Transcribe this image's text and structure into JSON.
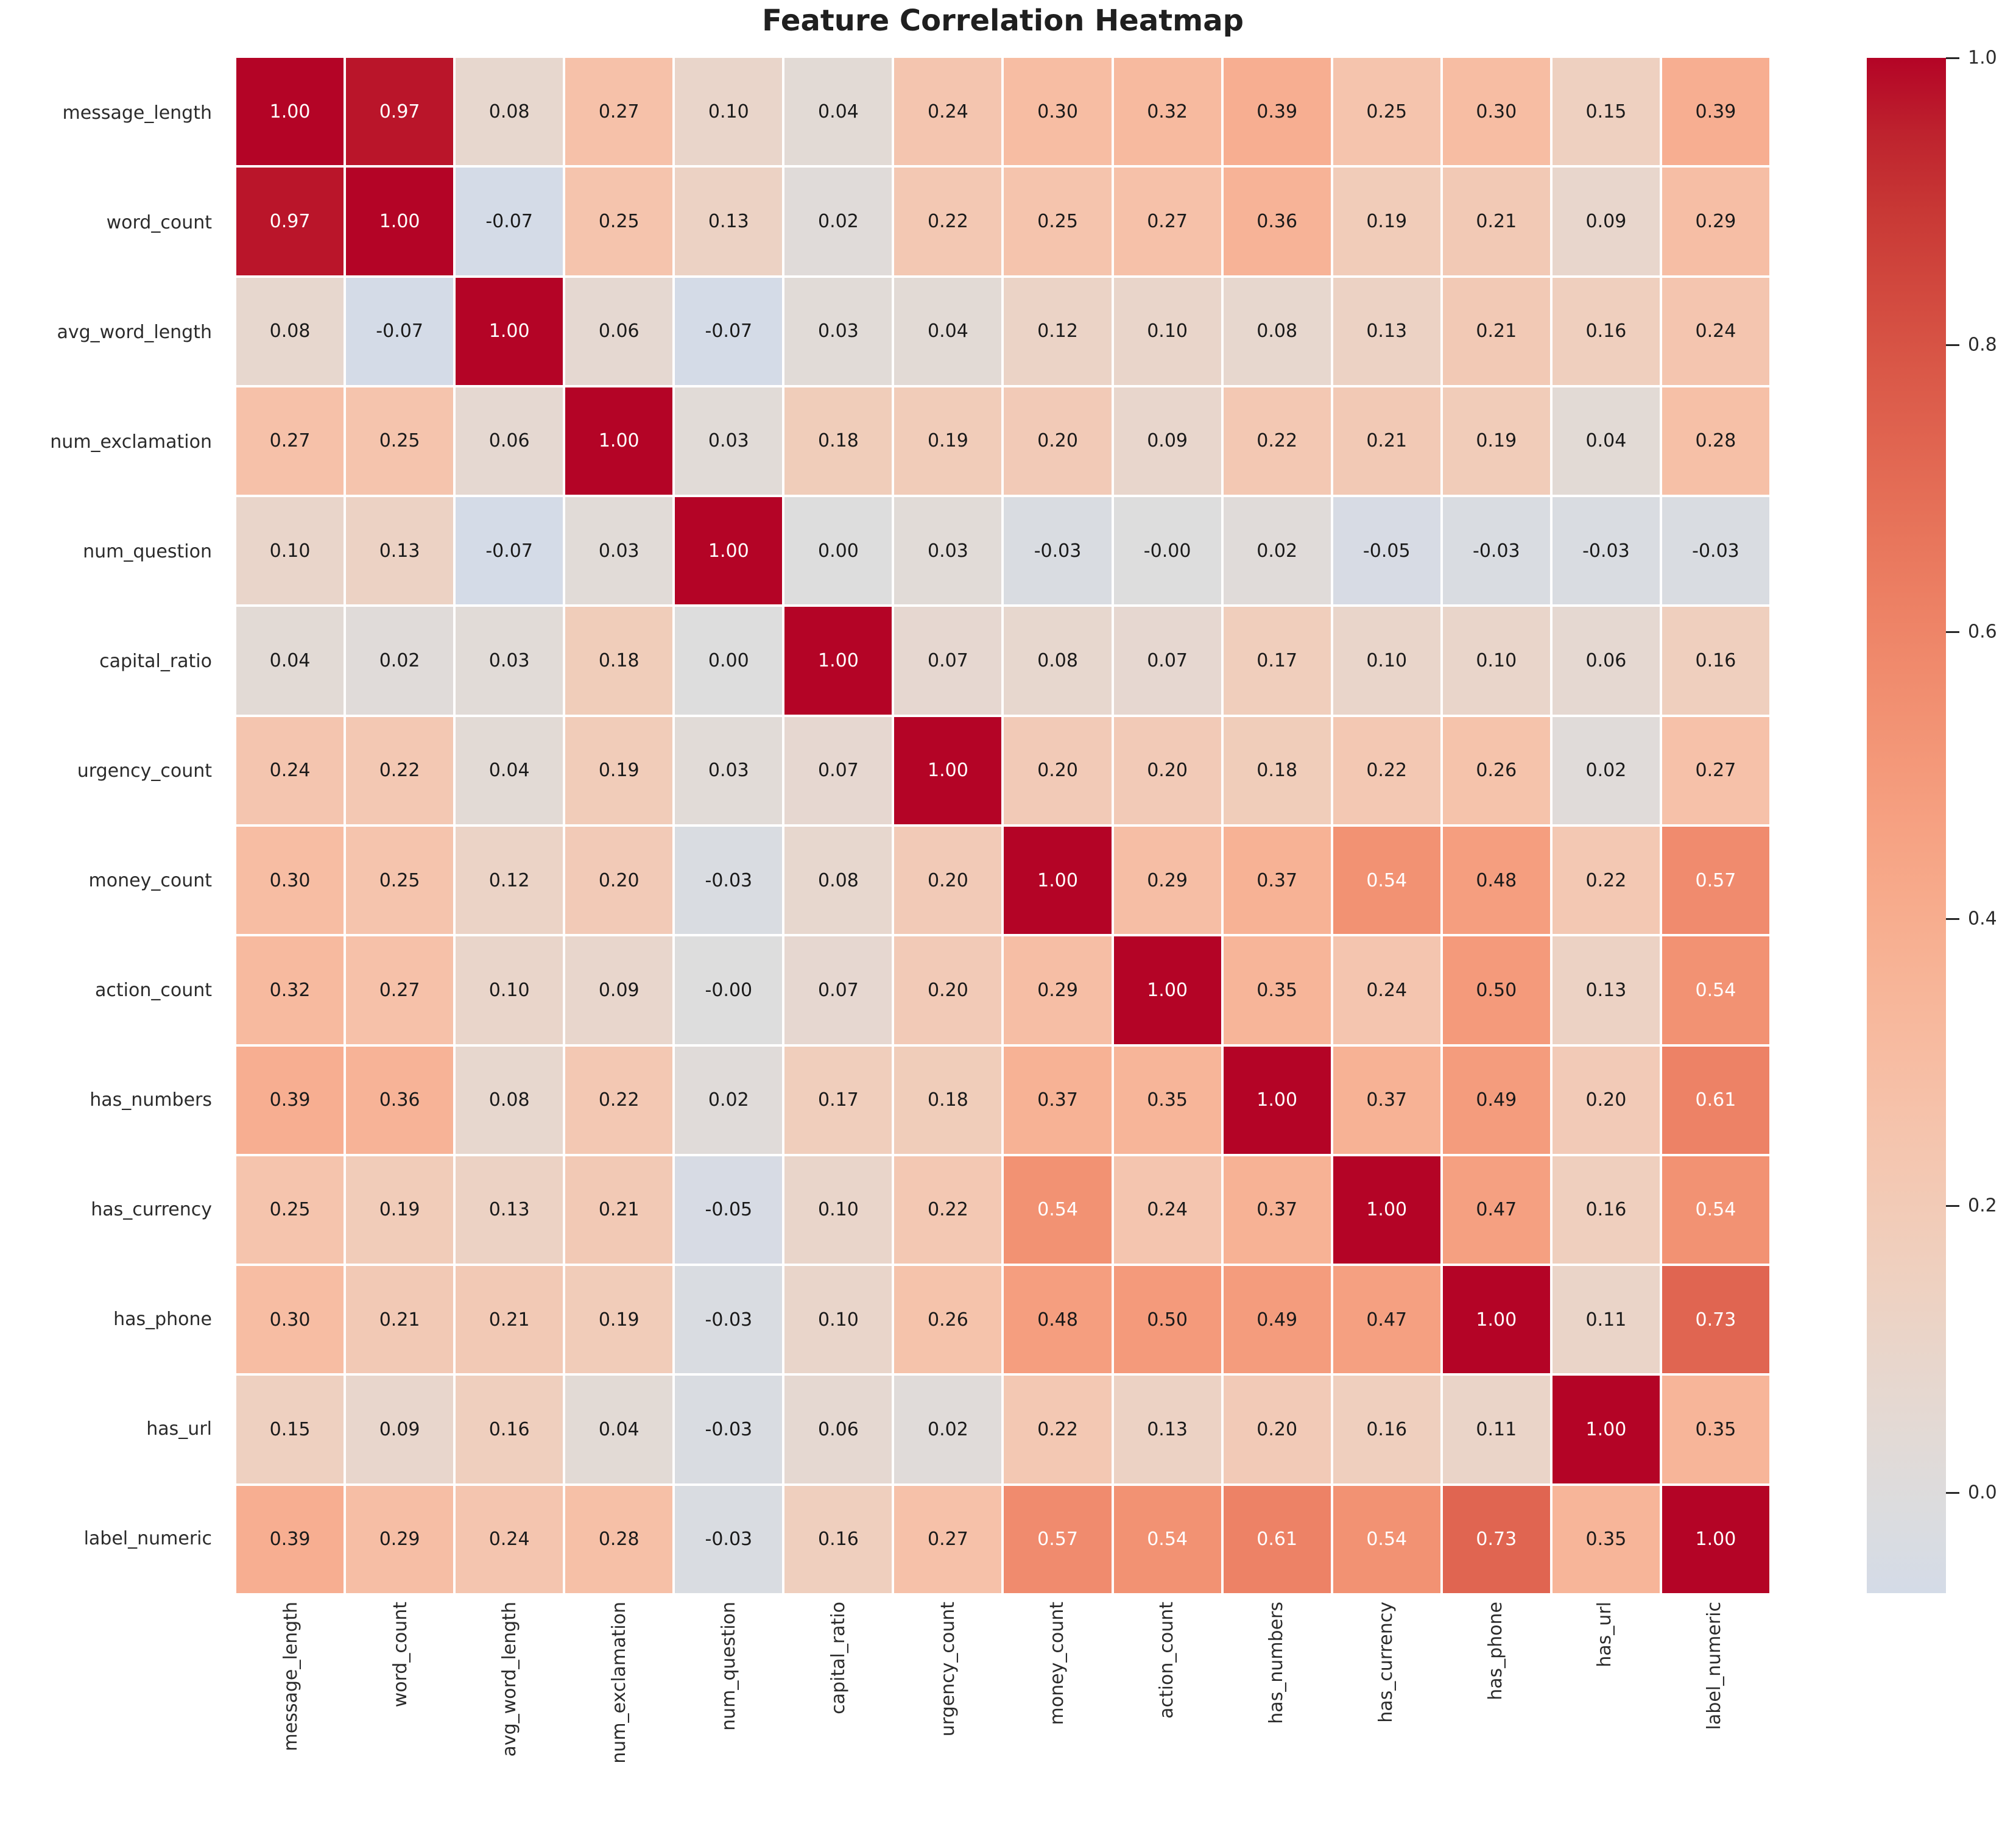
{
  "title": "Feature Correlation Heatmap",
  "chart_data": {
    "type": "heatmap",
    "title": "Feature Correlation Heatmap",
    "labels": [
      "message_length",
      "word_count",
      "avg_word_length",
      "num_exclamation",
      "num_question",
      "capital_ratio",
      "urgency_count",
      "money_count",
      "action_count",
      "has_numbers",
      "has_currency",
      "has_phone",
      "has_url",
      "label_numeric"
    ],
    "matrix": [
      [
        "1.00",
        "0.97",
        "0.08",
        "0.27",
        "0.10",
        "0.04",
        "0.24",
        "0.30",
        "0.32",
        "0.39",
        "0.25",
        "0.30",
        "0.15",
        "0.39"
      ],
      [
        "0.97",
        "1.00",
        "-0.07",
        "0.25",
        "0.13",
        "0.02",
        "0.22",
        "0.25",
        "0.27",
        "0.36",
        "0.19",
        "0.21",
        "0.09",
        "0.29"
      ],
      [
        "0.08",
        "-0.07",
        "1.00",
        "0.06",
        "-0.07",
        "0.03",
        "0.04",
        "0.12",
        "0.10",
        "0.08",
        "0.13",
        "0.21",
        "0.16",
        "0.24"
      ],
      [
        "0.27",
        "0.25",
        "0.06",
        "1.00",
        "0.03",
        "0.18",
        "0.19",
        "0.20",
        "0.09",
        "0.22",
        "0.21",
        "0.19",
        "0.04",
        "0.28"
      ],
      [
        "0.10",
        "0.13",
        "-0.07",
        "0.03",
        "1.00",
        "0.00",
        "0.03",
        "-0.03",
        "-0.00",
        "0.02",
        "-0.05",
        "-0.03",
        "-0.03",
        "-0.03"
      ],
      [
        "0.04",
        "0.02",
        "0.03",
        "0.18",
        "0.00",
        "1.00",
        "0.07",
        "0.08",
        "0.07",
        "0.17",
        "0.10",
        "0.10",
        "0.06",
        "0.16"
      ],
      [
        "0.24",
        "0.22",
        "0.04",
        "0.19",
        "0.03",
        "0.07",
        "1.00",
        "0.20",
        "0.20",
        "0.18",
        "0.22",
        "0.26",
        "0.02",
        "0.27"
      ],
      [
        "0.30",
        "0.25",
        "0.12",
        "0.20",
        "-0.03",
        "0.08",
        "0.20",
        "1.00",
        "0.29",
        "0.37",
        "0.54",
        "0.48",
        "0.22",
        "0.57"
      ],
      [
        "0.32",
        "0.27",
        "0.10",
        "0.09",
        "-0.00",
        "0.07",
        "0.20",
        "0.29",
        "1.00",
        "0.35",
        "0.24",
        "0.50",
        "0.13",
        "0.54"
      ],
      [
        "0.39",
        "0.36",
        "0.08",
        "0.22",
        "0.02",
        "0.17",
        "0.18",
        "0.37",
        "0.35",
        "1.00",
        "0.37",
        "0.49",
        "0.20",
        "0.61"
      ],
      [
        "0.25",
        "0.19",
        "0.13",
        "0.21",
        "-0.05",
        "0.10",
        "0.22",
        "0.54",
        "0.24",
        "0.37",
        "1.00",
        "0.47",
        "0.16",
        "0.54"
      ],
      [
        "0.30",
        "0.21",
        "0.21",
        "0.19",
        "-0.03",
        "0.10",
        "0.26",
        "0.48",
        "0.50",
        "0.49",
        "0.47",
        "1.00",
        "0.11",
        "0.73"
      ],
      [
        "0.15",
        "0.09",
        "0.16",
        "0.04",
        "-0.03",
        "0.06",
        "0.02",
        "0.22",
        "0.13",
        "0.20",
        "0.16",
        "0.11",
        "1.00",
        "0.35"
      ],
      [
        "0.39",
        "0.29",
        "0.24",
        "0.28",
        "-0.03",
        "0.16",
        "0.27",
        "0.57",
        "0.54",
        "0.61",
        "0.54",
        "0.73",
        "0.35",
        "1.00"
      ]
    ],
    "annotation_format": ".2f",
    "colormap": "coolwarm, centered at 0",
    "vmin": -0.07,
    "vmax": 1.0,
    "colorbar_ticks": [
      "1.0",
      "0.8",
      "0.6",
      "0.4",
      "0.2",
      "0.0"
    ],
    "colorbar_tick_values": [
      1.0,
      0.8,
      0.6,
      0.4,
      0.2,
      0.0
    ],
    "legend_position": "right",
    "grid": "white cell separators",
    "colors": {
      "max_correlation": "#b40426",
      "zero_correlation": "#dddddd",
      "min_correlation": "#d4dbe7",
      "annotation_dark": "#1a1a1a",
      "annotation_light": "#ffffff",
      "axis_text": "#2b2b2b",
      "background": "#ffffff"
    }
  }
}
